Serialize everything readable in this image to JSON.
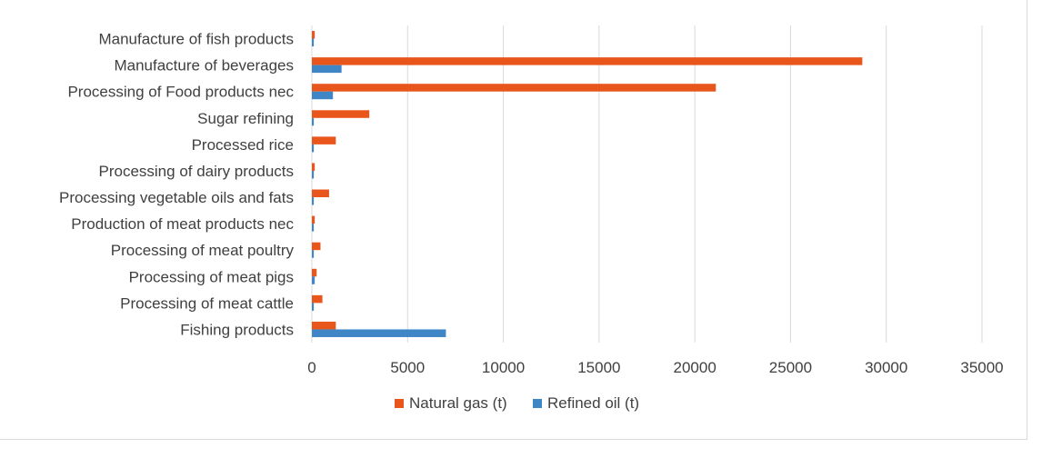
{
  "chart_data": {
    "type": "bar",
    "orientation": "horizontal",
    "categories": [
      "Fishing products",
      "Processing of meat cattle",
      "Processing of meat pigs",
      "Processing of meat poultry",
      "Production of meat products nec",
      "Processing vegetable oils and fats",
      "Processing of dairy products",
      "Processed rice",
      "Sugar refining",
      "Processing of Food products nec",
      "Manufacture of beverages",
      "Manufacture of fish products"
    ],
    "series": [
      {
        "name": "Natural gas (t)",
        "color": "#e8561c",
        "values": [
          1250,
          550,
          250,
          450,
          150,
          900,
          150,
          1250,
          3000,
          21100,
          28750,
          150
        ]
      },
      {
        "name": "Refined oil (t)",
        "color": "#3e86c6",
        "values": [
          7000,
          100,
          150,
          100,
          100,
          100,
          100,
          100,
          100,
          1100,
          1550,
          100
        ]
      }
    ],
    "xlim": [
      0,
      35000
    ],
    "xticks": [
      0,
      5000,
      10000,
      15000,
      20000,
      25000,
      30000,
      35000
    ],
    "grid": true,
    "legend_position": "bottom",
    "title": "",
    "xlabel": "",
    "ylabel": ""
  }
}
